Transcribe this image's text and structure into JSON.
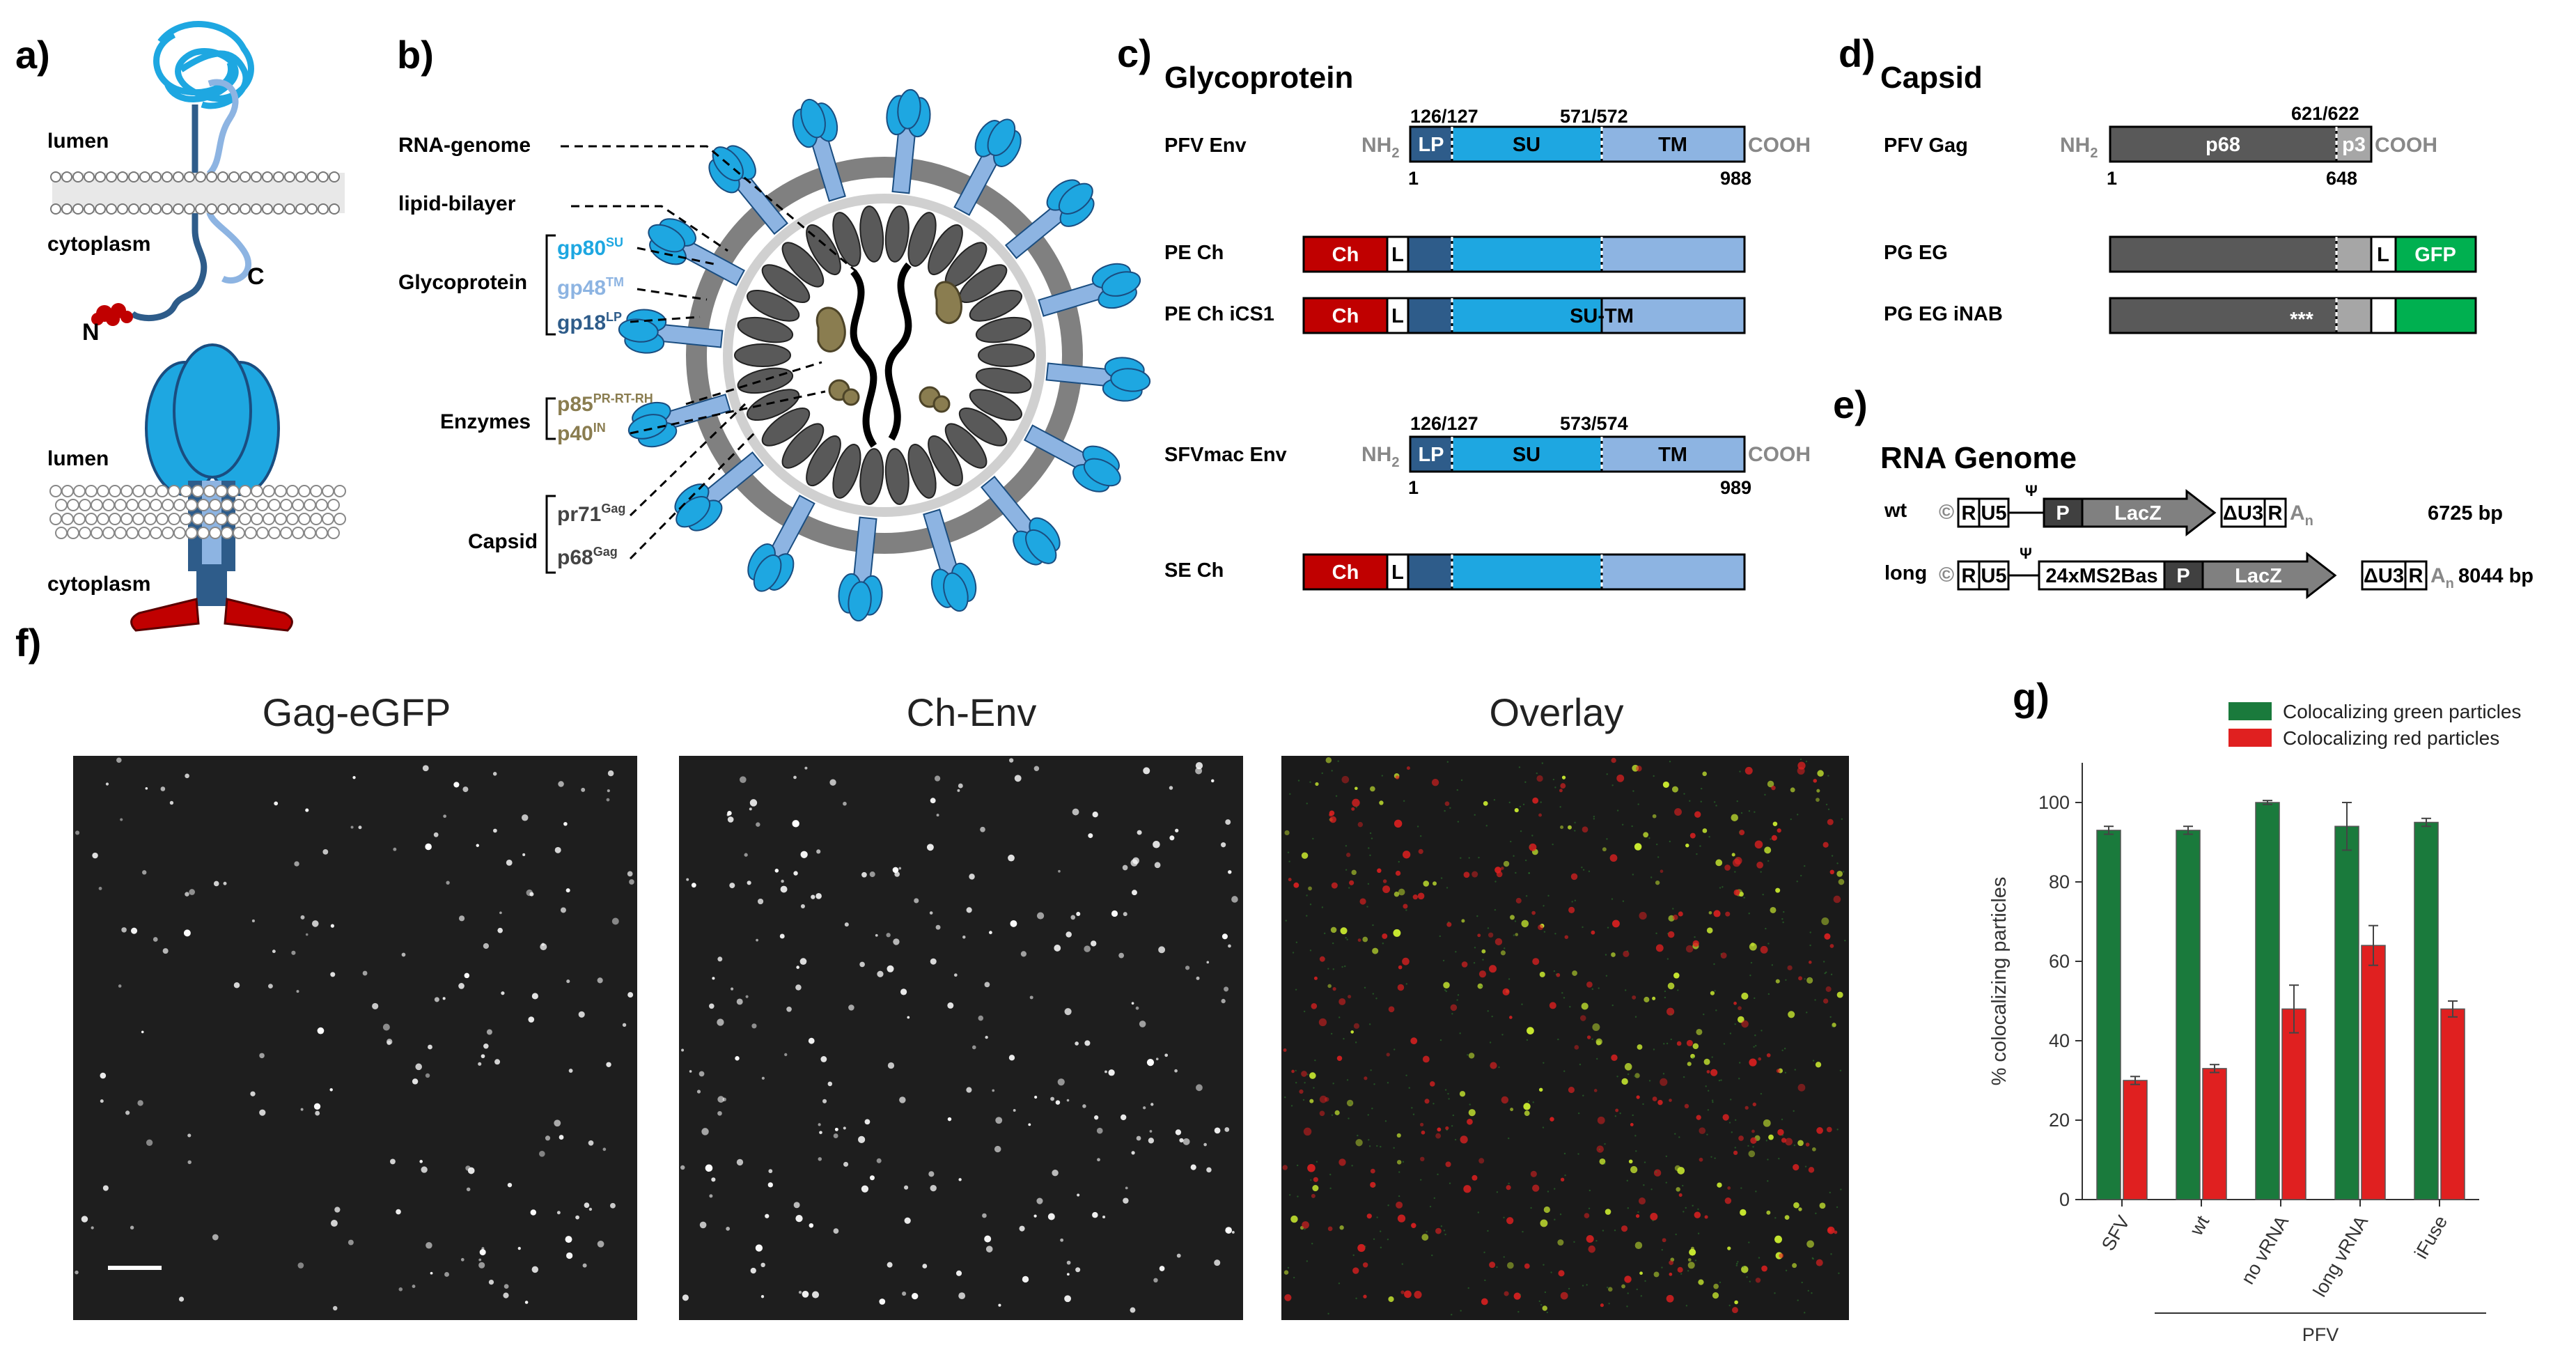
{
  "panels": {
    "a": "a)",
    "b": "b)",
    "c": "c)",
    "d": "d)",
    "e": "e)",
    "f": "f)",
    "g": "g)"
  },
  "panel_a": {
    "lumen_top": "lumen",
    "cytoplasm_top": "cytoplasm",
    "n_term": "N",
    "c_term": "C",
    "lumen_bottom": "lumen",
    "cytoplasm_bottom": "cytoplasm"
  },
  "panel_b": {
    "rna_genome": "RNA-genome",
    "lipid_bilayer": "lipid-bilayer",
    "glycoprotein": "Glycoprotein",
    "gp80": "gp80",
    "gp80_sup": "SU",
    "gp48": "gp48",
    "gp48_sup": "TM",
    "gp18": "gp18",
    "gp18_sup": "LP",
    "enzymes": "Enzymes",
    "p85": "p85",
    "p85_sup": "PR-RT-RH",
    "p40": "p40",
    "p40_sup": "IN",
    "capsid": "Capsid",
    "pr71": "pr71",
    "pr71_sup": "Gag",
    "p68": "p68",
    "p68_sup": "Gag"
  },
  "panel_c": {
    "title": "Glycoprotein",
    "pfv_env": "PFV Env",
    "pfv_pos_1": "126/127",
    "pfv_pos_2": "571/572",
    "pfv_start": "1",
    "pfv_end": "988",
    "nh2": "NH",
    "nh2_sub": "2",
    "cooh": "COOH",
    "lp": "LP",
    "su": "SU",
    "tm": "TM",
    "pe_ch": "PE Ch",
    "pe_ch_ics1": "PE Ch iCS1",
    "ch": "Ch",
    "l": "L",
    "su_tm": "SU-TM",
    "sfvmac_env": "SFVmac Env",
    "sfv_pos_1": "126/127",
    "sfv_pos_2": "573/574",
    "sfv_start": "1",
    "sfv_end": "989",
    "se_ch": "SE Ch"
  },
  "panel_d": {
    "title": "Capsid",
    "pfv_gag": "PFV Gag",
    "pos": "621/622",
    "p68": "p68",
    "p3": "p3",
    "start": "1",
    "end": "648",
    "pg_eg": "PG EG",
    "pg_eg_inab": "PG EG iNAB",
    "l": "L",
    "gfp": "GFP",
    "stars": "***"
  },
  "panel_e": {
    "title": "RNA Genome",
    "wt": "wt",
    "long": "long",
    "wt_bp": "6725 bp",
    "long_bp": "8044 bp",
    "r": "R",
    "u5": "U5",
    "p": "P",
    "lacz": "LacZ",
    "du3": "ΔU3",
    "psi": "Ψ",
    "an": "A",
    "an_sub": "n",
    "ms2": "24xMS2Bas",
    "cap": "©"
  },
  "panel_f": {
    "t1": "Gag-eGFP",
    "t2": "Ch-Env",
    "t3": "Overlay"
  },
  "colors": {
    "su_blue": "#1ea7e1",
    "tm_blue": "#8db4e2",
    "lp_blue": "#2e5c8a",
    "ch_red": "#c00000",
    "gag_gray": "#595959",
    "gfp_green": "#00b050",
    "bar_green": "#1a7a3c",
    "bar_red": "#e02020",
    "enzyme": "#8a7d50"
  },
  "chart_data": {
    "type": "bar",
    "categories": [
      "SFV",
      "wt",
      "no vRNA",
      "long vRNA",
      "iFuse"
    ],
    "group_label": "PFV",
    "ylabel": "% colocalizing particles",
    "ylim": [
      0,
      110
    ],
    "yticks": [
      0,
      20,
      40,
      60,
      80,
      100
    ],
    "series": [
      {
        "name": "Colocalizing green particles",
        "values": [
          93,
          93,
          100,
          94,
          95
        ],
        "err": [
          1,
          1,
          0.5,
          6,
          1
        ]
      },
      {
        "name": "Colocalizing red particles",
        "values": [
          30,
          33,
          48,
          64,
          48
        ],
        "err": [
          1,
          1,
          6,
          5,
          2
        ]
      }
    ],
    "legend_position": "top-right"
  }
}
